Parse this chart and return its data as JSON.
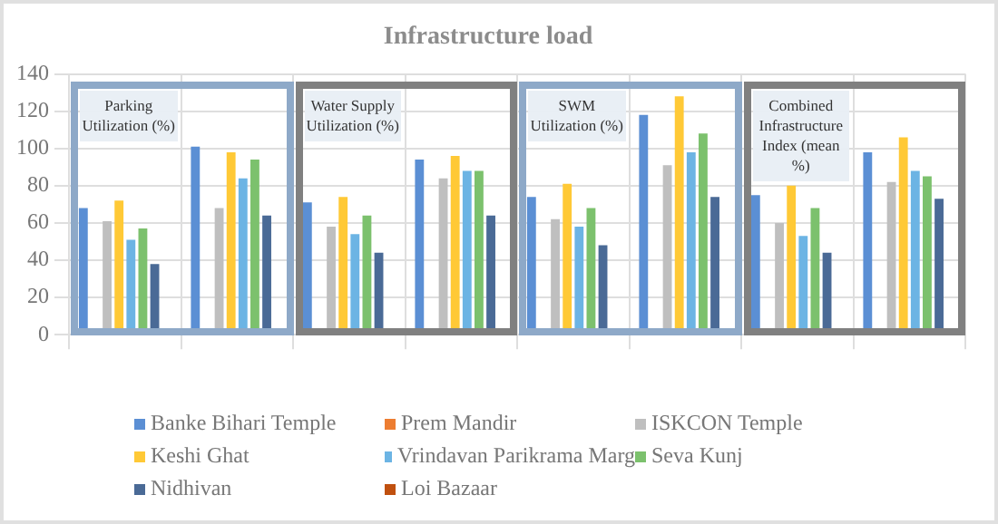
{
  "chart_data": {
    "type": "bar",
    "title": "Infrastructure load",
    "categories": [
      null,
      null,
      null,
      null,
      null,
      null,
      null,
      null
    ],
    "series": [
      {
        "name": "Banke Bihari Temple",
        "color": "#5b8fd4",
        "values": [
          68,
          101,
          71,
          94,
          74,
          118,
          75,
          98
        ]
      },
      {
        "name": "Prem Mandir",
        "color": "#ed7d31",
        "values": [
          null,
          null,
          null,
          null,
          null,
          null,
          null,
          null
        ]
      },
      {
        "name": "ISKCON Temple",
        "color": "#bfbfbf",
        "values": [
          61,
          68,
          58,
          84,
          62,
          91,
          60,
          82
        ]
      },
      {
        "name": "Keshi Ghat",
        "color": "#ffc936",
        "values": [
          72,
          98,
          74,
          96,
          81,
          128,
          80,
          106
        ]
      },
      {
        "name": "Vrindavan Parikrama Marg",
        "color": "#6cb4e4",
        "values": [
          51,
          84,
          54,
          88,
          58,
          98,
          53,
          88
        ]
      },
      {
        "name": "Seva Kunj",
        "color": "#7cc16d",
        "values": [
          57,
          94,
          64,
          88,
          68,
          108,
          68,
          85
        ]
      },
      {
        "name": "Nidhivan",
        "color": "#4a6a96",
        "values": [
          38,
          64,
          44,
          64,
          48,
          74,
          44,
          73
        ]
      },
      {
        "name": "Loi Bazaar",
        "color": "#c0500f",
        "values": [
          null,
          null,
          null,
          null,
          null,
          null,
          null,
          null
        ]
      }
    ],
    "ylim": [
      0,
      140
    ],
    "yticks": [
      0,
      20,
      40,
      60,
      80,
      100,
      120,
      140
    ],
    "grid": true,
    "legend": "bottom",
    "annotations": [
      "Parking Utilization (%)",
      "Water Supply Utilization (%)",
      "SWM Utilization (%)",
      "Combined Infrastructure Index (mean %)"
    ]
  }
}
